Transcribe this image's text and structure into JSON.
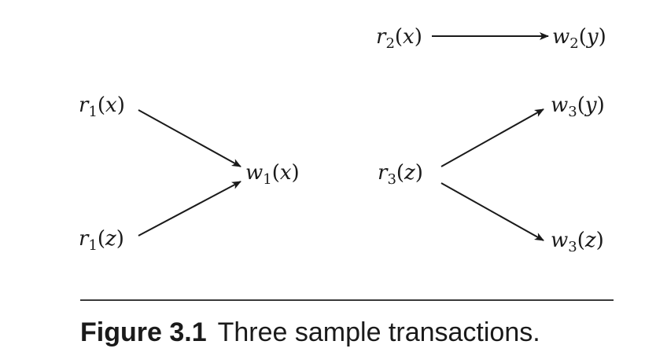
{
  "diagram": {
    "nodes": {
      "r1x": {
        "letter": "r",
        "sub": "1",
        "arg": "x"
      },
      "r1z": {
        "letter": "r",
        "sub": "1",
        "arg": "z"
      },
      "w1x": {
        "letter": "w",
        "sub": "1",
        "arg": "x"
      },
      "r2x": {
        "letter": "r",
        "sub": "2",
        "arg": "x"
      },
      "w2y": {
        "letter": "w",
        "sub": "2",
        "arg": "y"
      },
      "r3z": {
        "letter": "r",
        "sub": "3",
        "arg": "z"
      },
      "w3y": {
        "letter": "w",
        "sub": "3",
        "arg": "y"
      },
      "w3z": {
        "letter": "w",
        "sub": "3",
        "arg": "z"
      }
    },
    "edges": [
      {
        "from": "r1x",
        "to": "w1x"
      },
      {
        "from": "r1z",
        "to": "w1x"
      },
      {
        "from": "r2x",
        "to": "w2y"
      },
      {
        "from": "r3z",
        "to": "w3y"
      },
      {
        "from": "r3z",
        "to": "w3z"
      }
    ]
  },
  "caption": {
    "label": "Figure 3.1",
    "text": "Three sample transactions."
  },
  "colors": {
    "ink": "#1a1a1a",
    "rule": "#3a3a3a"
  }
}
